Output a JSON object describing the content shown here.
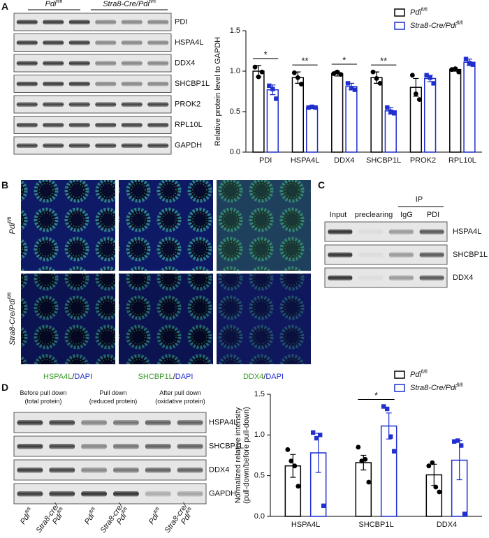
{
  "panels": {
    "A": {
      "label": "A",
      "groups": [
        {
          "name": "Pdi",
          "sup": "fl/fl"
        },
        {
          "name": "Stra8-Cre/Pdi",
          "sup": "fl/fl"
        }
      ],
      "blots": [
        "PDI",
        "HSPA4L",
        "DDX4",
        "SHCBP1L",
        "PROK2",
        "RPL10L",
        "GAPDH"
      ]
    },
    "B": {
      "label": "B",
      "rows": [
        {
          "name": "Pdi",
          "sup": "fl/fl"
        },
        {
          "name": "Stra8-Cre/Pdi",
          "sup": "fl/fl"
        }
      ],
      "columns": [
        {
          "marker": "HSPA4L",
          "separator": "/",
          "stain": "DAPI"
        },
        {
          "marker": "SHCBP1L",
          "separator": "/",
          "stain": "DAPI"
        },
        {
          "marker": "DDX4",
          "separator": "/",
          "stain": "DAPI"
        }
      ]
    },
    "C": {
      "label": "C",
      "ip": "IP",
      "lanes": [
        "Input",
        "preclearing",
        "IgG",
        "PDI"
      ],
      "blots": [
        "HSPA4L",
        "SHCBP1L",
        "DDX4"
      ]
    },
    "D": {
      "label": "D",
      "conditions": [
        [
          "Before pull down",
          "(total protein)"
        ],
        [
          "Pull down",
          "(reduced protein)"
        ],
        [
          "After pull down",
          "(oxidative protein)"
        ]
      ],
      "blots": [
        "HSPA4L",
        "SHCBP1L",
        "DDX4",
        "GAPDH"
      ],
      "lanes": [
        {
          "lines": [
            "Pdi"
          ],
          "sup": "fl/fl"
        },
        {
          "lines": [
            "Stra8-cre/",
            "Pdi"
          ],
          "sup": "fl/fl"
        },
        {
          "lines": [
            "Pdi"
          ],
          "sup": "fl/fl"
        },
        {
          "lines": [
            "Stra8-cre/",
            "Pdi"
          ],
          "sup": "fl/fl"
        },
        {
          "lines": [
            "Pdi"
          ],
          "sup": "fl/fl"
        },
        {
          "lines": [
            "Stra8-cre/",
            "Pdi"
          ],
          "sup": "fl/fl"
        }
      ]
    }
  },
  "chart_data": [
    {
      "type": "bar",
      "ylabel": [
        "Relative protein level to GAPDH"
      ],
      "categories": [
        "PDI",
        "HSPA4L",
        "DDX4",
        "SHCBP1L",
        "PROK2",
        "RPL10L"
      ],
      "ylim": [
        0,
        1.5
      ],
      "yticks": [
        {
          "value": 0,
          "label": "0.0"
        },
        {
          "value": 0.5,
          "label": "0.5"
        },
        {
          "value": 1.0,
          "label": "1.0"
        },
        {
          "value": 1.5,
          "label": "1.5"
        }
      ],
      "significance": [
        "*",
        "**",
        "*",
        "**",
        null,
        null
      ],
      "series": [
        {
          "name": "Pdi",
          "name_sup": "fl/fl",
          "color": "#000000",
          "marker": "circle",
          "values": [
            1.0,
            0.92,
            0.97,
            0.92,
            0.8,
            1.02
          ],
          "errors": [
            0.07,
            0.07,
            0.03,
            0.07,
            0.11,
            0.02
          ],
          "points": [
            [
              1.05,
              0.93,
              0.99
            ],
            [
              0.98,
              0.92,
              0.84
            ],
            [
              0.97,
              0.99,
              0.96
            ],
            [
              0.99,
              0.91,
              0.85
            ],
            [
              0.95,
              0.72,
              0.65
            ],
            [
              1.02,
              1.03,
              0.99
            ]
          ]
        },
        {
          "name": "Stra8-Cre/Pdi",
          "name_sup": "fl/fl",
          "color": "#1f2fd0",
          "marker": "square",
          "values": [
            0.77,
            0.55,
            0.81,
            0.51,
            0.91,
            1.11
          ],
          "errors": [
            0.06,
            0.01,
            0.04,
            0.04,
            0.04,
            0.04
          ],
          "points": [
            [
              0.82,
              0.78,
              0.66
            ],
            [
              0.55,
              0.56,
              0.55
            ],
            [
              0.85,
              0.79,
              0.77
            ],
            [
              0.55,
              0.5,
              0.48
            ],
            [
              0.95,
              0.92,
              0.85
            ],
            [
              1.15,
              1.1,
              1.08
            ]
          ]
        }
      ]
    },
    {
      "type": "bar",
      "ylabel": [
        "Normalized relative intensity",
        "(pull-down/before pull-down)"
      ],
      "categories": [
        "HSPA4L",
        "SHCBP1L",
        "DDX4"
      ],
      "ylim": [
        0,
        1.5
      ],
      "yticks": [
        {
          "value": 0,
          "label": "0.0"
        },
        {
          "value": 0.5,
          "label": "0.5"
        },
        {
          "value": 1.0,
          "label": "1.0"
        },
        {
          "value": 1.5,
          "label": "1.5"
        }
      ],
      "significance": [
        null,
        "*",
        null
      ],
      "series": [
        {
          "name": "Pdi",
          "name_sup": "fl/fl",
          "color": "#000000",
          "marker": "circle",
          "values": [
            0.62,
            0.66,
            0.51
          ],
          "errors": [
            0.14,
            0.09,
            0.13
          ],
          "points": [
            [
              0.82,
              0.68,
              0.62,
              0.37
            ],
            [
              0.85,
              0.68,
              0.7,
              0.42
            ],
            [
              0.62,
              0.66,
              0.36,
              0.3
            ]
          ]
        },
        {
          "name": "Stra8-Cre/Pdi",
          "name_sup": "fl/fl",
          "color": "#1f2fd0",
          "marker": "square",
          "values": [
            0.78,
            1.11,
            0.69
          ],
          "errors": [
            0.24,
            0.16,
            0.24
          ],
          "points": [
            [
              1.03,
              0.96,
              1.0,
              0.13
            ],
            [
              1.35,
              1.32,
              0.98,
              0.8
            ],
            [
              0.92,
              0.93,
              0.87,
              0.03
            ]
          ]
        }
      ]
    }
  ]
}
